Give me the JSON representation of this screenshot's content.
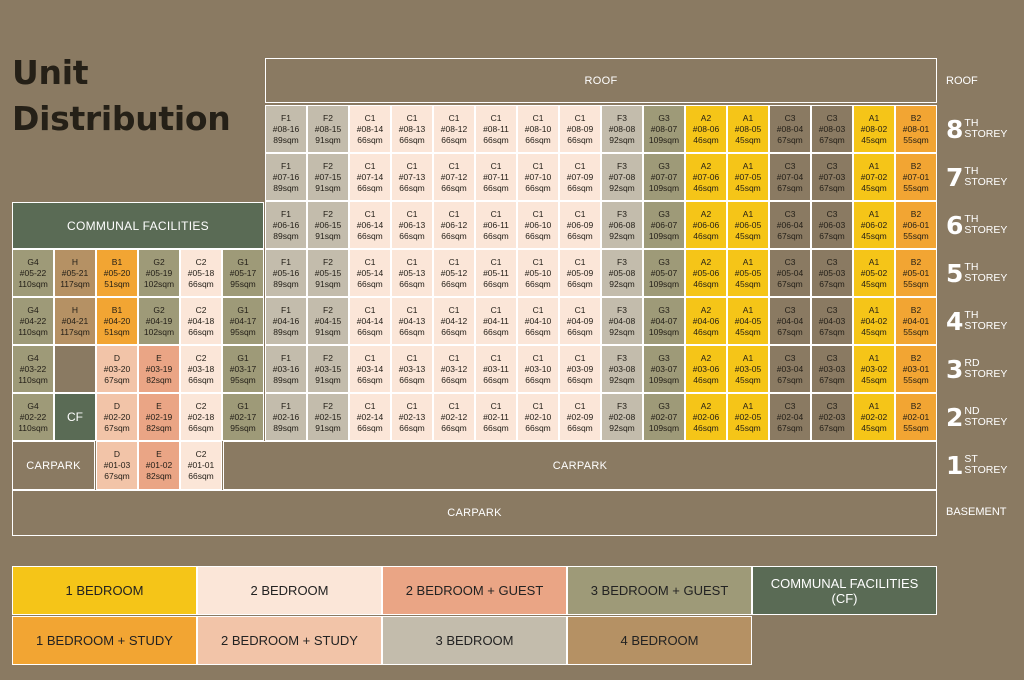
{
  "title": "Unit Distribution",
  "colors": {
    "A1": "#f5c518",
    "A2": "#f5c518",
    "B1": "#f2a533",
    "B2": "#f2a533",
    "C1": "#fbe6d8",
    "C2": "#fbe6d8",
    "D": "#f2c4a8",
    "E": "#eaa585",
    "F1": "#c3bcac",
    "F2": "#c3bcac",
    "F3": "#c3bcac",
    "G1": "#9e9a78",
    "G2": "#9e9a78",
    "G3": "#9e9a78",
    "G4": "#9e9a78",
    "H": "#b59164",
    "CF": "#5a6b55",
    "background": "#8a7a62"
  },
  "roof_label": "ROOF",
  "communal_label": "COMMUNAL FACILITIES",
  "cf_label": "CF",
  "carpark_left_label": "CARPARK",
  "carpark_main_label": "CARPARK",
  "basement_carpark_label": "CARPARK",
  "storeys": {
    "roof": "ROOF",
    "basement": "BASEMENT",
    "s8": {
      "num": "8",
      "sup": "TH",
      "word": "STOREY"
    },
    "s7": {
      "num": "7",
      "sup": "TH",
      "word": "STOREY"
    },
    "s6": {
      "num": "6",
      "sup": "TH",
      "word": "STOREY"
    },
    "s5": {
      "num": "5",
      "sup": "TH",
      "word": "STOREY"
    },
    "s4": {
      "num": "4",
      "sup": "TH",
      "word": "STOREY"
    },
    "s3": {
      "num": "3",
      "sup": "RD",
      "word": "STOREY"
    },
    "s2": {
      "num": "2",
      "sup": "ND",
      "word": "STOREY"
    },
    "s1": {
      "num": "1",
      "sup": "ST",
      "word": "STOREY"
    }
  },
  "main_units": [
    {
      "type": "F1",
      "no": "16",
      "area": "89sqm"
    },
    {
      "type": "F2",
      "no": "15",
      "area": "91sqm"
    },
    {
      "type": "C1",
      "no": "14",
      "area": "66sqm"
    },
    {
      "type": "C1",
      "no": "13",
      "area": "66sqm"
    },
    {
      "type": "C1",
      "no": "12",
      "area": "66sqm"
    },
    {
      "type": "C1",
      "no": "11",
      "area": "66sqm"
    },
    {
      "type": "C1",
      "no": "10",
      "area": "66sqm"
    },
    {
      "type": "C1",
      "no": "09",
      "area": "66sqm"
    },
    {
      "type": "F3",
      "no": "08",
      "area": "92sqm"
    },
    {
      "type": "G3",
      "no": "07",
      "area": "109sqm"
    },
    {
      "type": "A2",
      "no": "06",
      "area": "46sqm"
    },
    {
      "type": "A1",
      "no": "05",
      "area": "45sqm"
    },
    {
      "type": "C3",
      "no": "04",
      "area": "67sqm"
    },
    {
      "type": "C3",
      "no": "03",
      "area": "67sqm"
    },
    {
      "type": "A1",
      "no": "02",
      "area": "45sqm"
    },
    {
      "type": "B2",
      "no": "01",
      "area": "55sqm"
    }
  ],
  "main_floors": [
    "08",
    "07",
    "06",
    "05",
    "04",
    "03",
    "02"
  ],
  "left_block": [
    {
      "floor": "05",
      "cells": [
        {
          "type": "G4",
          "unit": "#05-22",
          "area": "110sqm"
        },
        {
          "type": "H",
          "unit": "#05-21",
          "area": "117sqm"
        },
        {
          "type": "B1",
          "unit": "#05-20",
          "area": "51sqm"
        },
        {
          "type": "G2",
          "unit": "#05-19",
          "area": "102sqm"
        },
        {
          "type": "C2",
          "unit": "#05-18",
          "area": "66sqm"
        },
        {
          "type": "G1",
          "unit": "#05-17",
          "area": "95sqm"
        }
      ]
    },
    {
      "floor": "04",
      "cells": [
        {
          "type": "G4",
          "unit": "#04-22",
          "area": "110sqm"
        },
        {
          "type": "H",
          "unit": "#04-21",
          "area": "117sqm"
        },
        {
          "type": "B1",
          "unit": "#04-20",
          "area": "51sqm"
        },
        {
          "type": "G2",
          "unit": "#04-19",
          "area": "102sqm"
        },
        {
          "type": "C2",
          "unit": "#04-18",
          "area": "66sqm"
        },
        {
          "type": "G1",
          "unit": "#04-17",
          "area": "95sqm"
        }
      ]
    },
    {
      "floor": "03",
      "cells": [
        {
          "type": "G4",
          "unit": "#03-22",
          "area": "110sqm"
        },
        {
          "type": "",
          "unit": "",
          "area": ""
        },
        {
          "type": "D",
          "unit": "#03-20",
          "area": "67sqm"
        },
        {
          "type": "E",
          "unit": "#03-19",
          "area": "82sqm"
        },
        {
          "type": "C2",
          "unit": "#03-18",
          "area": "66sqm"
        },
        {
          "type": "G1",
          "unit": "#03-17",
          "area": "95sqm"
        }
      ]
    },
    {
      "floor": "02",
      "cells": [
        {
          "type": "G4",
          "unit": "#02-22",
          "area": "110sqm"
        },
        {
          "type": "CF",
          "unit": "",
          "area": ""
        },
        {
          "type": "D",
          "unit": "#02-20",
          "area": "67sqm"
        },
        {
          "type": "E",
          "unit": "#02-19",
          "area": "82sqm"
        },
        {
          "type": "C2",
          "unit": "#02-18",
          "area": "66sqm"
        },
        {
          "type": "G1",
          "unit": "#02-17",
          "area": "95sqm"
        }
      ]
    }
  ],
  "first_floor_units": [
    {
      "type": "D",
      "unit": "#01-03",
      "area": "67sqm"
    },
    {
      "type": "E",
      "unit": "#01-02",
      "area": "82sqm"
    },
    {
      "type": "C2",
      "unit": "#01-01",
      "area": "66sqm"
    }
  ],
  "legend": [
    {
      "label": "1 BEDROOM",
      "color": "#f5c518",
      "text_color": "#222"
    },
    {
      "label": "2 BEDROOM",
      "color": "#fbe6d8",
      "text_color": "#222"
    },
    {
      "label": "2 BEDROOM + GUEST",
      "color": "#eaa585",
      "text_color": "#222"
    },
    {
      "label": "3 BEDROOM + GUEST",
      "color": "#9e9a78",
      "text_color": "#222"
    },
    {
      "label": "COMMUNAL FACILITIES (CF)",
      "color": "#5a6b55",
      "text_color": "#ffffff"
    },
    {
      "label": "1 BEDROOM + STUDY",
      "color": "#f2a533",
      "text_color": "#222"
    },
    {
      "label": "2 BEDROOM + STUDY",
      "color": "#f2c4a8",
      "text_color": "#222"
    },
    {
      "label": "3 BEDROOM",
      "color": "#c3bcac",
      "text_color": "#222"
    },
    {
      "label": "4 BEDROOM",
      "color": "#b59164",
      "text_color": "#222"
    }
  ]
}
